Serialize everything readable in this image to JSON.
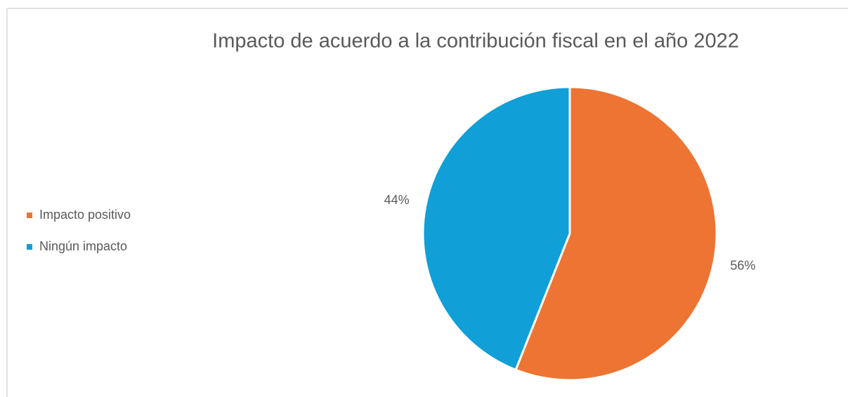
{
  "chart_data": {
    "type": "pie",
    "title": "Impacto de acuerdo a la contribución fiscal en el año 2022",
    "categories": [
      "Impacto positivo",
      "Ningún impacto"
    ],
    "values": [
      56,
      44
    ],
    "value_labels": [
      "56%",
      "44%"
    ],
    "colors": [
      "#ED7432",
      "#109FD6"
    ],
    "legend": "left"
  }
}
